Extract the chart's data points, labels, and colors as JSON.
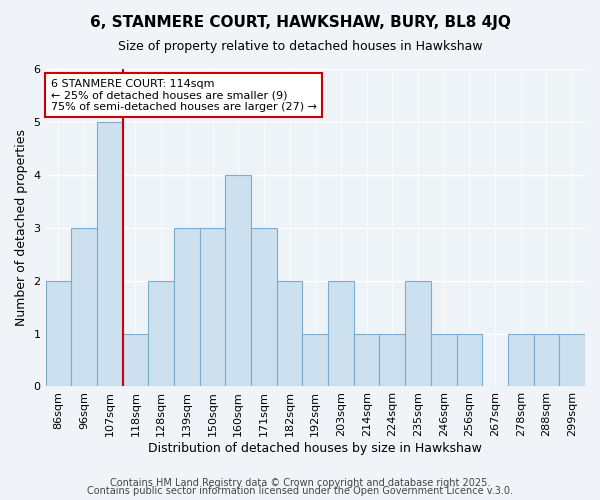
{
  "title1": "6, STANMERE COURT, HAWKSHAW, BURY, BL8 4JQ",
  "title2": "Size of property relative to detached houses in Hawkshaw",
  "xlabel": "Distribution of detached houses by size in Hawkshaw",
  "ylabel": "Number of detached properties",
  "bins": [
    "86sqm",
    "96sqm",
    "107sqm",
    "118sqm",
    "128sqm",
    "139sqm",
    "150sqm",
    "160sqm",
    "171sqm",
    "182sqm",
    "192sqm",
    "203sqm",
    "214sqm",
    "224sqm",
    "235sqm",
    "246sqm",
    "256sqm",
    "267sqm",
    "278sqm",
    "288sqm",
    "299sqm"
  ],
  "values": [
    2,
    3,
    5,
    1,
    2,
    3,
    3,
    4,
    3,
    2,
    1,
    2,
    1,
    1,
    2,
    1,
    1,
    0,
    1,
    1,
    1
  ],
  "bar_color": "#cce0f0",
  "bar_edge_color": "#7aadcc",
  "vline_x_index": 2.5,
  "vline_color": "#cc0000",
  "annotation_text": "6 STANMERE COURT: 114sqm\n← 25% of detached houses are smaller (9)\n75% of semi-detached houses are larger (27) →",
  "annotation_box_color": "white",
  "annotation_box_edge_color": "#cc0000",
  "ylim": [
    0,
    6
  ],
  "yticks": [
    0,
    1,
    2,
    3,
    4,
    5,
    6
  ],
  "footer1": "Contains HM Land Registry data © Crown copyright and database right 2025.",
  "footer2": "Contains public sector information licensed under the Open Government Licence v.3.0.",
  "bg_color": "#f0f4f8",
  "plot_bg_color": "#eef3f8",
  "title_fontsize": 11,
  "subtitle_fontsize": 9,
  "tick_fontsize": 8,
  "label_fontsize": 9,
  "footer_fontsize": 7,
  "annot_fontsize": 8
}
